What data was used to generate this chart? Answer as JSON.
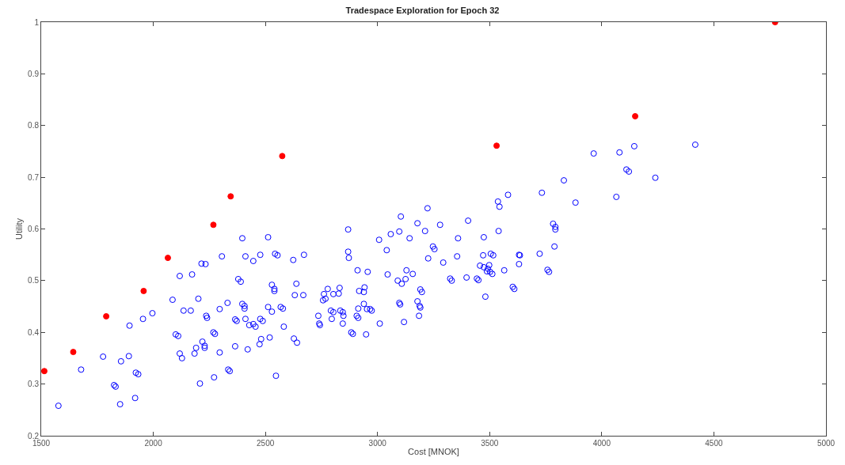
{
  "chart_data": {
    "type": "scatter",
    "title": "Tradespace Exploration for Epoch 32",
    "xlabel": "Cost [MNOK]",
    "ylabel": "Utility",
    "xlim": [
      1500,
      5000
    ],
    "xticks": [
      1500,
      2000,
      2500,
      3000,
      3500,
      4000,
      4500,
      5000
    ],
    "ylim": [
      0.2,
      1
    ],
    "yticks": [
      0.2,
      0.3,
      0.4,
      0.5,
      0.6,
      0.7,
      0.8,
      0.9,
      1
    ],
    "marker": "circle",
    "series": [
      {
        "color": "#0000ff",
        "x": [
          1577,
          1678,
          1776,
          1856,
          1891,
          1894,
          1825,
          1832,
          1852,
          1919,
          1922,
          1933,
          1954,
          1996,
          2086,
          2118,
          2173,
          2215,
          2233,
          2306,
          2201,
          2135,
          2167,
          2100,
          2111,
          2118,
          2128,
          2184,
          2191,
          2219,
          2229,
          2229,
          2208,
          2236,
          2240,
          2268,
          2275,
          2271,
          2296,
          2296,
          2331,
          2334,
          2341,
          2365,
          2365,
          2372,
          2379,
          2390,
          2397,
          2411,
          2397,
          2407,
          2407,
          2411,
          2421,
          2428,
          2446,
          2456,
          2446,
          2474,
          2481,
          2477,
          2477,
          2488,
          2512,
          2512,
          2519,
          2529,
          2529,
          2540,
          2540,
          2547,
          2543,
          2554,
          2568,
          2578,
          2582,
          2624,
          2627,
          2641,
          2638,
          2631,
          2669,
          2672,
          2736,
          2740,
          2743,
          2757,
          2768,
          2761,
          2778,
          2792,
          2796,
          2803,
          2803,
          2827,
          2831,
          2834,
          2845,
          2848,
          2845,
          2869,
          2869,
          2872,
          2883,
          2890,
          2907,
          2914,
          2911,
          2914,
          2918,
          2939,
          2939,
          2942,
          2949,
          2953,
          2967,
          2974,
          2956,
          3007,
          3010,
          3041,
          3045,
          3059,
          3090,
          3097,
          3101,
          3097,
          3104,
          3108,
          3125,
          3129,
          3118,
          3143,
          3157,
          3178,
          3178,
          3188,
          3191,
          3185,
          3191,
          3198,
          3212,
          3223,
          3226,
          3247,
          3254,
          3279,
          3293,
          3324,
          3331,
          3355,
          3359,
          3397,
          3404,
          3443,
          3450,
          3457,
          3471,
          3474,
          3474,
          3481,
          3492,
          3498,
          3505,
          3516,
          3488,
          3502,
          3512,
          3537,
          3544,
          3540,
          3565,
          3582,
          3603,
          3610,
          3631,
          3635,
          3631,
          3723,
          3733,
          3758,
          3765,
          3783,
          3793,
          3793,
          3789,
          3964,
          4079,
          4145,
          4417,
          4110,
          4121,
          4239,
          3831,
          4065,
          3883
        ],
        "values": [
          0.258,
          0.328,
          0.353,
          0.344,
          0.354,
          0.413,
          0.298,
          0.295,
          0.261,
          0.273,
          0.322,
          0.319,
          0.426,
          0.437,
          0.463,
          0.509,
          0.512,
          0.533,
          0.532,
          0.547,
          0.465,
          0.442,
          0.442,
          0.396,
          0.393,
          0.359,
          0.35,
          0.359,
          0.37,
          0.382,
          0.374,
          0.37,
          0.301,
          0.432,
          0.428,
          0.4,
          0.397,
          0.313,
          0.445,
          0.361,
          0.457,
          0.328,
          0.325,
          0.373,
          0.425,
          0.422,
          0.503,
          0.498,
          0.582,
          0.547,
          0.455,
          0.446,
          0.451,
          0.426,
          0.367,
          0.414,
          0.416,
          0.411,
          0.538,
          0.377,
          0.387,
          0.55,
          0.426,
          0.422,
          0.584,
          0.449,
          0.39,
          0.492,
          0.44,
          0.484,
          0.48,
          0.316,
          0.552,
          0.549,
          0.449,
          0.446,
          0.411,
          0.54,
          0.388,
          0.38,
          0.494,
          0.472,
          0.472,
          0.55,
          0.432,
          0.417,
          0.414,
          0.462,
          0.465,
          0.474,
          0.484,
          0.442,
          0.426,
          0.439,
          0.474,
          0.475,
          0.486,
          0.442,
          0.439,
          0.432,
          0.417,
          0.599,
          0.556,
          0.544,
          0.4,
          0.397,
          0.432,
          0.428,
          0.52,
          0.446,
          0.48,
          0.455,
          0.478,
          0.487,
          0.396,
          0.445,
          0.445,
          0.442,
          0.517,
          0.579,
          0.417,
          0.559,
          0.512,
          0.59,
          0.5,
          0.457,
          0.454,
          0.595,
          0.624,
          0.494,
          0.503,
          0.52,
          0.42,
          0.582,
          0.513,
          0.611,
          0.46,
          0.451,
          0.448,
          0.432,
          0.483,
          0.478,
          0.596,
          0.64,
          0.543,
          0.566,
          0.561,
          0.608,
          0.535,
          0.504,
          0.5,
          0.547,
          0.582,
          0.506,
          0.616,
          0.504,
          0.501,
          0.529,
          0.549,
          0.584,
          0.526,
          0.469,
          0.523,
          0.53,
          0.552,
          0.549,
          0.518,
          0.517,
          0.513,
          0.653,
          0.643,
          0.596,
          0.52,
          0.666,
          0.488,
          0.484,
          0.55,
          0.549,
          0.532,
          0.552,
          0.67,
          0.521,
          0.517,
          0.61,
          0.604,
          0.599,
          0.566,
          0.746,
          0.748,
          0.76,
          0.763,
          0.715,
          0.711,
          0.699,
          0.694,
          0.662,
          0.651
        ]
      },
      {
        "color": "#ff0000",
        "x": [
          1514,
          1643,
          1790,
          1957,
          2065,
          2268,
          2345,
          2575,
          3531,
          4149,
          4773
        ],
        "values": [
          0.325,
          0.362,
          0.431,
          0.48,
          0.544,
          0.608,
          0.663,
          0.741,
          0.761,
          0.818,
          1.0
        ]
      }
    ]
  }
}
